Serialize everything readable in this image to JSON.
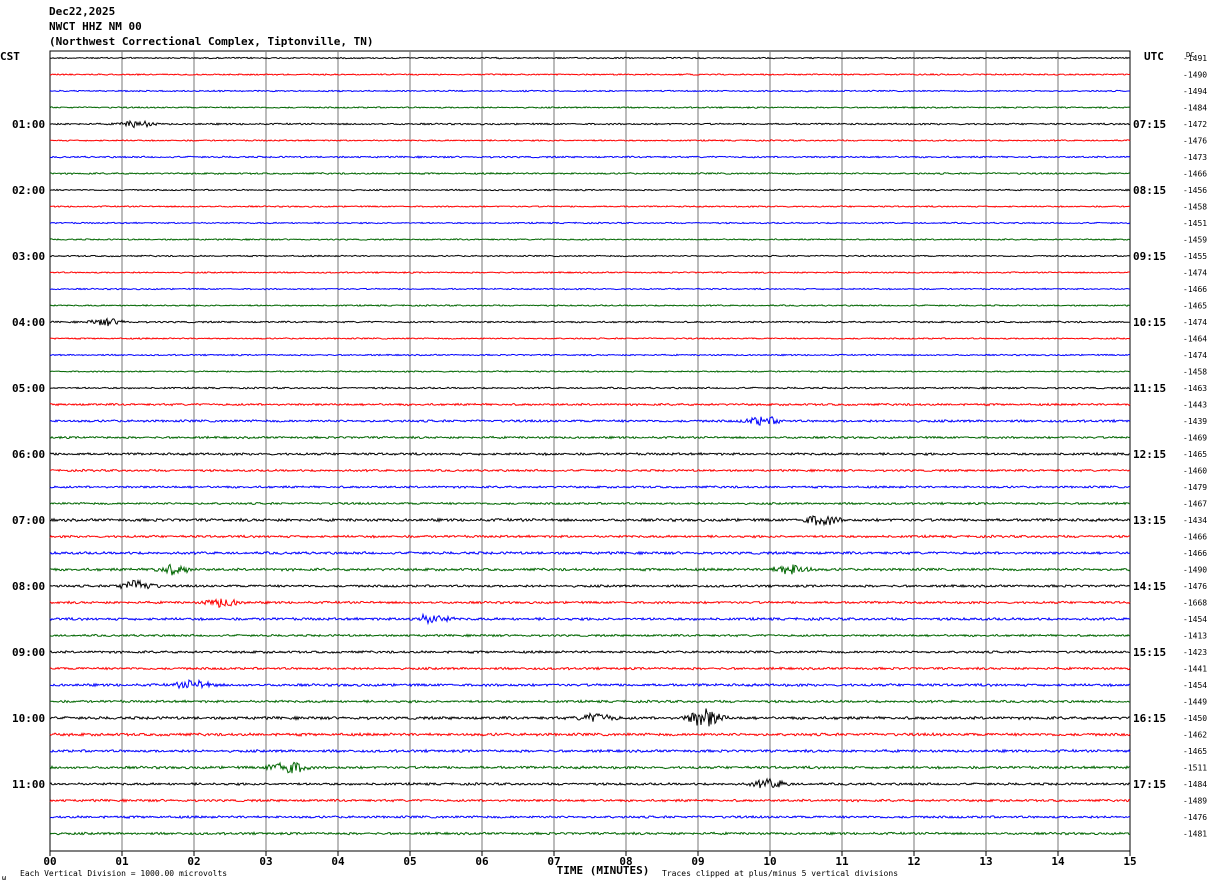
{
  "header": {
    "date": "Dec22,2025",
    "station": "NWCT HHZ NM 00",
    "location": "(Northwest Correctional Complex, Tiptonville, TN)"
  },
  "footer": {
    "scale_note": "Each Vertical Division = 1000.00 microvolts",
    "clip_note": "Traces clipped at plus/minus 5 vertical divisions",
    "corner_mark": "ω"
  },
  "chart_data": {
    "type": "line",
    "title": "",
    "xlabel": "TIME (MINUTES)",
    "x_ticks": [
      "00",
      "01",
      "02",
      "03",
      "04",
      "05",
      "06",
      "07",
      "08",
      "09",
      "10",
      "11",
      "12",
      "13",
      "14",
      "15"
    ],
    "xlim": [
      0,
      15
    ],
    "left_axis_label": "CST",
    "right_axis_label": "UTC",
    "dc_label": "DC",
    "grid": true,
    "trace_colors": [
      "#000000",
      "#ff0000",
      "#0000ff",
      "#006600"
    ],
    "left_hour_labels": [
      "01:00",
      "02:00",
      "03:00",
      "04:00",
      "05:00",
      "06:00",
      "07:00",
      "08:00",
      "09:00",
      "10:00",
      "11:00"
    ],
    "right_hour_labels": [
      "07:15",
      "08:15",
      "09:15",
      "10:15",
      "11:15",
      "12:15",
      "13:15",
      "14:15",
      "15:15",
      "16:15",
      "17:15"
    ],
    "dc_offsets": [
      -1491,
      -1490,
      -1494,
      -1484,
      -1472,
      -1476,
      -1473,
      -1466,
      -1456,
      -1458,
      -1451,
      -1459,
      -1455,
      -1474,
      -1466,
      -1465,
      -1474,
      -1464,
      -1474,
      -1458,
      -1463,
      -1443,
      -1439,
      -1469,
      -1465,
      -1460,
      -1479,
      -1467,
      -1434,
      -1466,
      -1466,
      -1490,
      -1476,
      -1668,
      -1454,
      -1413,
      -1423,
      -1441,
      -1454,
      -1449,
      -1450,
      -1462,
      -1465,
      -1511,
      -1484,
      -1489,
      -1476,
      -1481
    ],
    "trace_noise_level": [
      0.6,
      0.6,
      0.6,
      0.6,
      0.7,
      0.6,
      0.7,
      0.7,
      0.6,
      0.6,
      0.6,
      0.6,
      0.6,
      0.6,
      0.6,
      0.6,
      0.7,
      0.6,
      0.6,
      0.6,
      0.7,
      0.9,
      1.0,
      0.9,
      1.0,
      0.9,
      0.9,
      0.9,
      1.2,
      1.0,
      1.1,
      1.1,
      1.0,
      1.0,
      1.1,
      0.9,
      1.0,
      1.0,
      1.1,
      1.0,
      1.2,
      1.2,
      1.1,
      1.1,
      1.0,
      1.0,
      1.0,
      1.0
    ],
    "events": [
      {
        "trace": 4,
        "minute": 1.2,
        "amplitude": 3
      },
      {
        "trace": 16,
        "minute": 0.8,
        "amplitude": 3
      },
      {
        "trace": 22,
        "minute": 9.9,
        "amplitude": 4
      },
      {
        "trace": 28,
        "minute": 10.7,
        "amplitude": 5
      },
      {
        "trace": 31,
        "minute": 1.7,
        "amplitude": 4
      },
      {
        "trace": 31,
        "minute": 10.3,
        "amplitude": 5
      },
      {
        "trace": 32,
        "minute": 1.2,
        "amplitude": 5
      },
      {
        "trace": 33,
        "minute": 2.4,
        "amplitude": 4
      },
      {
        "trace": 34,
        "minute": 5.3,
        "amplitude": 4
      },
      {
        "trace": 38,
        "minute": 2.0,
        "amplitude": 4
      },
      {
        "trace": 40,
        "minute": 9.1,
        "amplitude": 9
      },
      {
        "trace": 40,
        "minute": 7.6,
        "amplitude": 4
      },
      {
        "trace": 43,
        "minute": 3.3,
        "amplitude": 7
      },
      {
        "trace": 44,
        "minute": 10.0,
        "amplitude": 4
      }
    ]
  }
}
